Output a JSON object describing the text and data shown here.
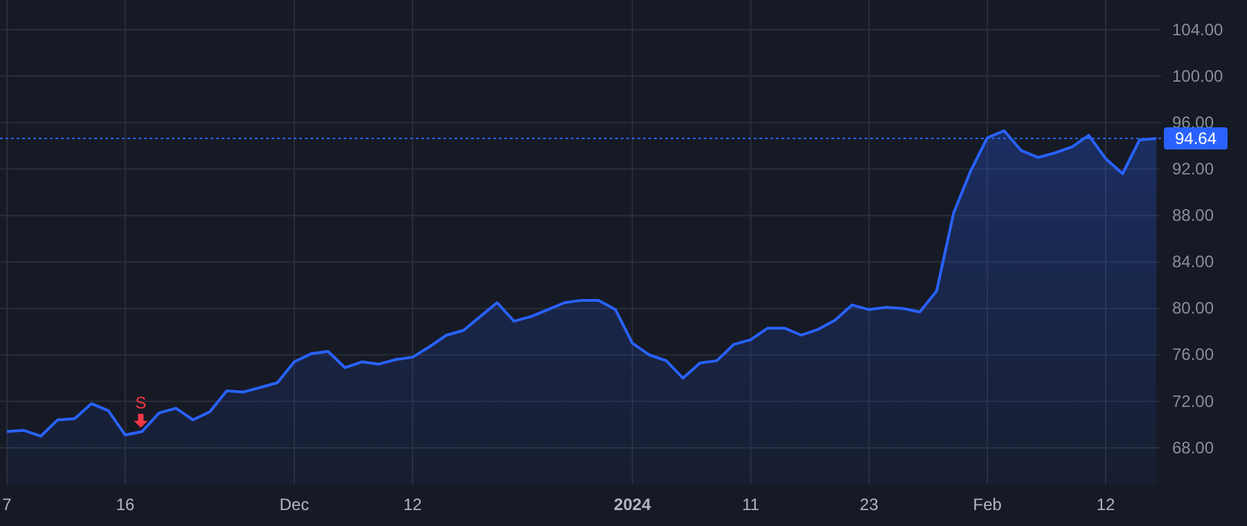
{
  "chart_data": {
    "type": "area",
    "categories": [
      "7",
      null,
      null,
      null,
      null,
      null,
      null,
      "16",
      null,
      null,
      null,
      null,
      null,
      null,
      null,
      null,
      null,
      "Dec",
      null,
      null,
      null,
      null,
      null,
      null,
      "12",
      null,
      null,
      null,
      null,
      null,
      null,
      null,
      null,
      null,
      null,
      null,
      null,
      "2024",
      null,
      null,
      null,
      null,
      null,
      null,
      "11",
      null,
      null,
      null,
      null,
      null,
      null,
      "23",
      null,
      null,
      null,
      null,
      null,
      null,
      "Feb",
      null,
      null,
      null,
      null,
      null,
      null,
      "12",
      null,
      null,
      null
    ],
    "series": [
      {
        "color": "#2962ff",
        "values": [
          69.4,
          69.5,
          69.0,
          70.4,
          70.5,
          71.8,
          71.2,
          69.1,
          69.4,
          71.0,
          71.4,
          70.4,
          71.1,
          72.9,
          72.8,
          73.2,
          73.6,
          75.4,
          76.1,
          76.3,
          74.9,
          75.4,
          75.2,
          75.6,
          75.8,
          76.7,
          77.7,
          78.1,
          79.3,
          80.5,
          78.9,
          79.3,
          79.9,
          80.5,
          80.7,
          80.7,
          79.9,
          77.0,
          76.0,
          75.5,
          74.0,
          75.3,
          75.5,
          76.9,
          77.3,
          78.3,
          78.3,
          77.7,
          78.2,
          79.0,
          80.3,
          79.9,
          80.1,
          80.0,
          79.7,
          81.5,
          88.2,
          91.8,
          94.7,
          95.3,
          93.6,
          93.0,
          93.4,
          93.9,
          94.9,
          92.9,
          91.6,
          94.5,
          94.64
        ]
      }
    ],
    "ylim": [
      64.84,
      106.56
    ],
    "yticks": [
      {
        "value": 68,
        "label": "68.00"
      },
      {
        "value": 72,
        "label": "72.00"
      },
      {
        "value": 76,
        "label": "76.00"
      },
      {
        "value": 80,
        "label": "80.00"
      },
      {
        "value": 84,
        "label": "84.00"
      },
      {
        "value": 88,
        "label": "88.00"
      },
      {
        "value": 92,
        "label": "92.00"
      },
      {
        "value": 96,
        "label": "96.00"
      },
      {
        "value": 100,
        "label": "100.00"
      },
      {
        "value": 104,
        "label": "104.00"
      }
    ],
    "ref_lines": [
      {
        "axis": "y",
        "value": 94.64,
        "label": "94.64",
        "color": "#2962ff",
        "line_style": "dotted"
      }
    ],
    "annotations": [
      "S"
    ],
    "grid": true
  }
}
